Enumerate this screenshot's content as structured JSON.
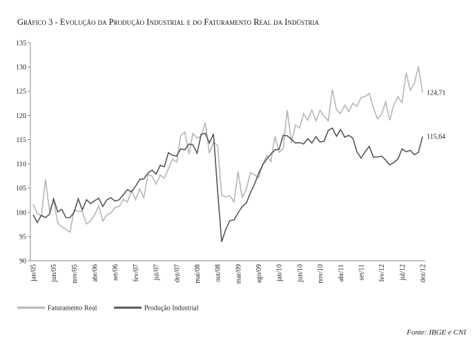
{
  "chart_data": {
    "type": "line",
    "title": "Gráfico 3 - Evolução da Produção Industrial e do Faturamento Real da Indústria",
    "source": "Fonte: IBGE e CNI",
    "categories": [
      "jan/05",
      null,
      null,
      null,
      null,
      "jun/05",
      null,
      null,
      null,
      null,
      "nov/05",
      null,
      null,
      null,
      null,
      "abr/06",
      null,
      null,
      null,
      null,
      "set/06",
      null,
      null,
      null,
      null,
      "fev/07",
      null,
      null,
      null,
      null,
      "jul/07",
      null,
      null,
      null,
      null,
      "dez/07",
      null,
      null,
      null,
      null,
      "mai/08",
      null,
      null,
      null,
      null,
      "out/08",
      null,
      null,
      null,
      null,
      "mar/09",
      null,
      null,
      null,
      null,
      "ago/09",
      null,
      null,
      null,
      null,
      "jan/10",
      null,
      null,
      null,
      null,
      "jun/10",
      null,
      null,
      null,
      null,
      "nov/10",
      null,
      null,
      null,
      null,
      "abr/11",
      null,
      null,
      null,
      null,
      "set/11",
      null,
      null,
      null,
      null,
      "fev/12",
      null,
      null,
      null,
      null,
      "jul/12",
      null,
      null,
      null,
      null,
      "dez/12"
    ],
    "series": [
      {
        "name": "Faturamento Real",
        "color": "#b5b5b5",
        "values": [
          101.7,
          99.8,
          99.2,
          106.8,
          100.3,
          102.4,
          97.8,
          97.0,
          96.5,
          95.9,
          100.5,
          100.2,
          100.2,
          97.6,
          98.2,
          99.5,
          101.3,
          98.2,
          99.5,
          99.9,
          101.0,
          101.2,
          102.7,
          102.1,
          104.5,
          102.6,
          104.8,
          103.0,
          107.8,
          107.5,
          105.8,
          107.7,
          107.0,
          109.0,
          111.0,
          110.3,
          115.8,
          116.6,
          112.0,
          116.3,
          115.3,
          115.8,
          118.5,
          112.2,
          114.5,
          113.8,
          103.5,
          103.2,
          103.4,
          102.2,
          108.4,
          103.1,
          104.7,
          108.2,
          107.8,
          107.1,
          109.8,
          111.8,
          110.5,
          115.7,
          112.4,
          113.2,
          121.1,
          114.4,
          118.0,
          117.4,
          120.4,
          119.0,
          121.1,
          118.9,
          121.1,
          119.8,
          118.9,
          125.4,
          121.1,
          120.4,
          122.1,
          120.8,
          122.5,
          121.9,
          123.7,
          123.9,
          124.5,
          121.6,
          119.3,
          120.2,
          122.8,
          119.0,
          122.2,
          123.8,
          122.7,
          128.8,
          125.2,
          126.6,
          130.1,
          124.71
        ],
        "value_labels": [
          null,
          null,
          null,
          null,
          null,
          null,
          null,
          null,
          null,
          null,
          null,
          null,
          null,
          null,
          null,
          null,
          null,
          null,
          null,
          null,
          null,
          null,
          null,
          null,
          null,
          null,
          null,
          null,
          null,
          null,
          null,
          null,
          null,
          null,
          null,
          null,
          null,
          null,
          null,
          null,
          null,
          null,
          null,
          null,
          null,
          null,
          null,
          null,
          null,
          null,
          null,
          null,
          null,
          null,
          null,
          null,
          null,
          null,
          null,
          null,
          null,
          null,
          null,
          null,
          null,
          null,
          null,
          null,
          null,
          null,
          null,
          null,
          null,
          null,
          null,
          null,
          null,
          null,
          null,
          null,
          null,
          null,
          null,
          null,
          null,
          null,
          null,
          null,
          null,
          null,
          null,
          null,
          null,
          null,
          null,
          "124,71"
        ]
      },
      {
        "name": "Produção Industrial",
        "color": "#555555",
        "values": [
          99.5,
          97.9,
          99.4,
          98.9,
          99.6,
          102.8,
          100.1,
          100.6,
          98.9,
          98.9,
          100.0,
          102.8,
          100.5,
          102.6,
          101.8,
          102.4,
          102.9,
          101.2,
          102.6,
          103.0,
          102.3,
          102.6,
          103.6,
          104.7,
          104.2,
          105.4,
          106.8,
          106.9,
          108.1,
          108.7,
          107.9,
          109.7,
          109.4,
          112.3,
          111.8,
          111.6,
          113.1,
          112.9,
          114.1,
          113.9,
          112.2,
          116.1,
          116.3,
          114.3,
          116.2,
          104.5,
          93.9,
          96.5,
          98.3,
          98.4,
          99.9,
          101.2,
          101.9,
          104.0,
          105.8,
          108.0,
          109.8,
          111.0,
          112.0,
          112.9,
          113.0,
          115.9,
          115.8,
          115.1,
          114.3,
          114.4,
          114.1,
          115.2,
          114.3,
          115.6,
          114.5,
          114.7,
          116.9,
          117.4,
          115.7,
          117.1,
          115.5,
          115.9,
          115.3,
          112.5,
          111.2,
          112.5,
          113.6,
          111.4,
          111.4,
          111.6,
          110.8,
          109.8,
          110.3,
          111.0,
          113.1,
          112.5,
          112.8,
          111.9,
          112.4,
          115.64
        ],
        "value_labels": [
          null,
          null,
          null,
          null,
          null,
          null,
          null,
          null,
          null,
          null,
          null,
          null,
          null,
          null,
          null,
          null,
          null,
          null,
          null,
          null,
          null,
          null,
          null,
          null,
          null,
          null,
          null,
          null,
          null,
          null,
          null,
          null,
          null,
          null,
          null,
          null,
          null,
          null,
          null,
          null,
          null,
          null,
          null,
          null,
          null,
          null,
          null,
          null,
          null,
          null,
          null,
          null,
          null,
          null,
          null,
          null,
          null,
          null,
          null,
          null,
          null,
          null,
          null,
          null,
          null,
          null,
          null,
          null,
          null,
          null,
          null,
          null,
          null,
          null,
          null,
          null,
          null,
          null,
          null,
          null,
          null,
          null,
          null,
          null,
          null,
          null,
          null,
          null,
          null,
          null,
          null,
          null,
          null,
          null,
          null,
          "115,64"
        ]
      }
    ],
    "ylim": [
      90,
      135
    ],
    "yticks": [
      90,
      95,
      100,
      105,
      110,
      115,
      120,
      125,
      130,
      135
    ],
    "grid": false,
    "legend": "bottom-left"
  }
}
